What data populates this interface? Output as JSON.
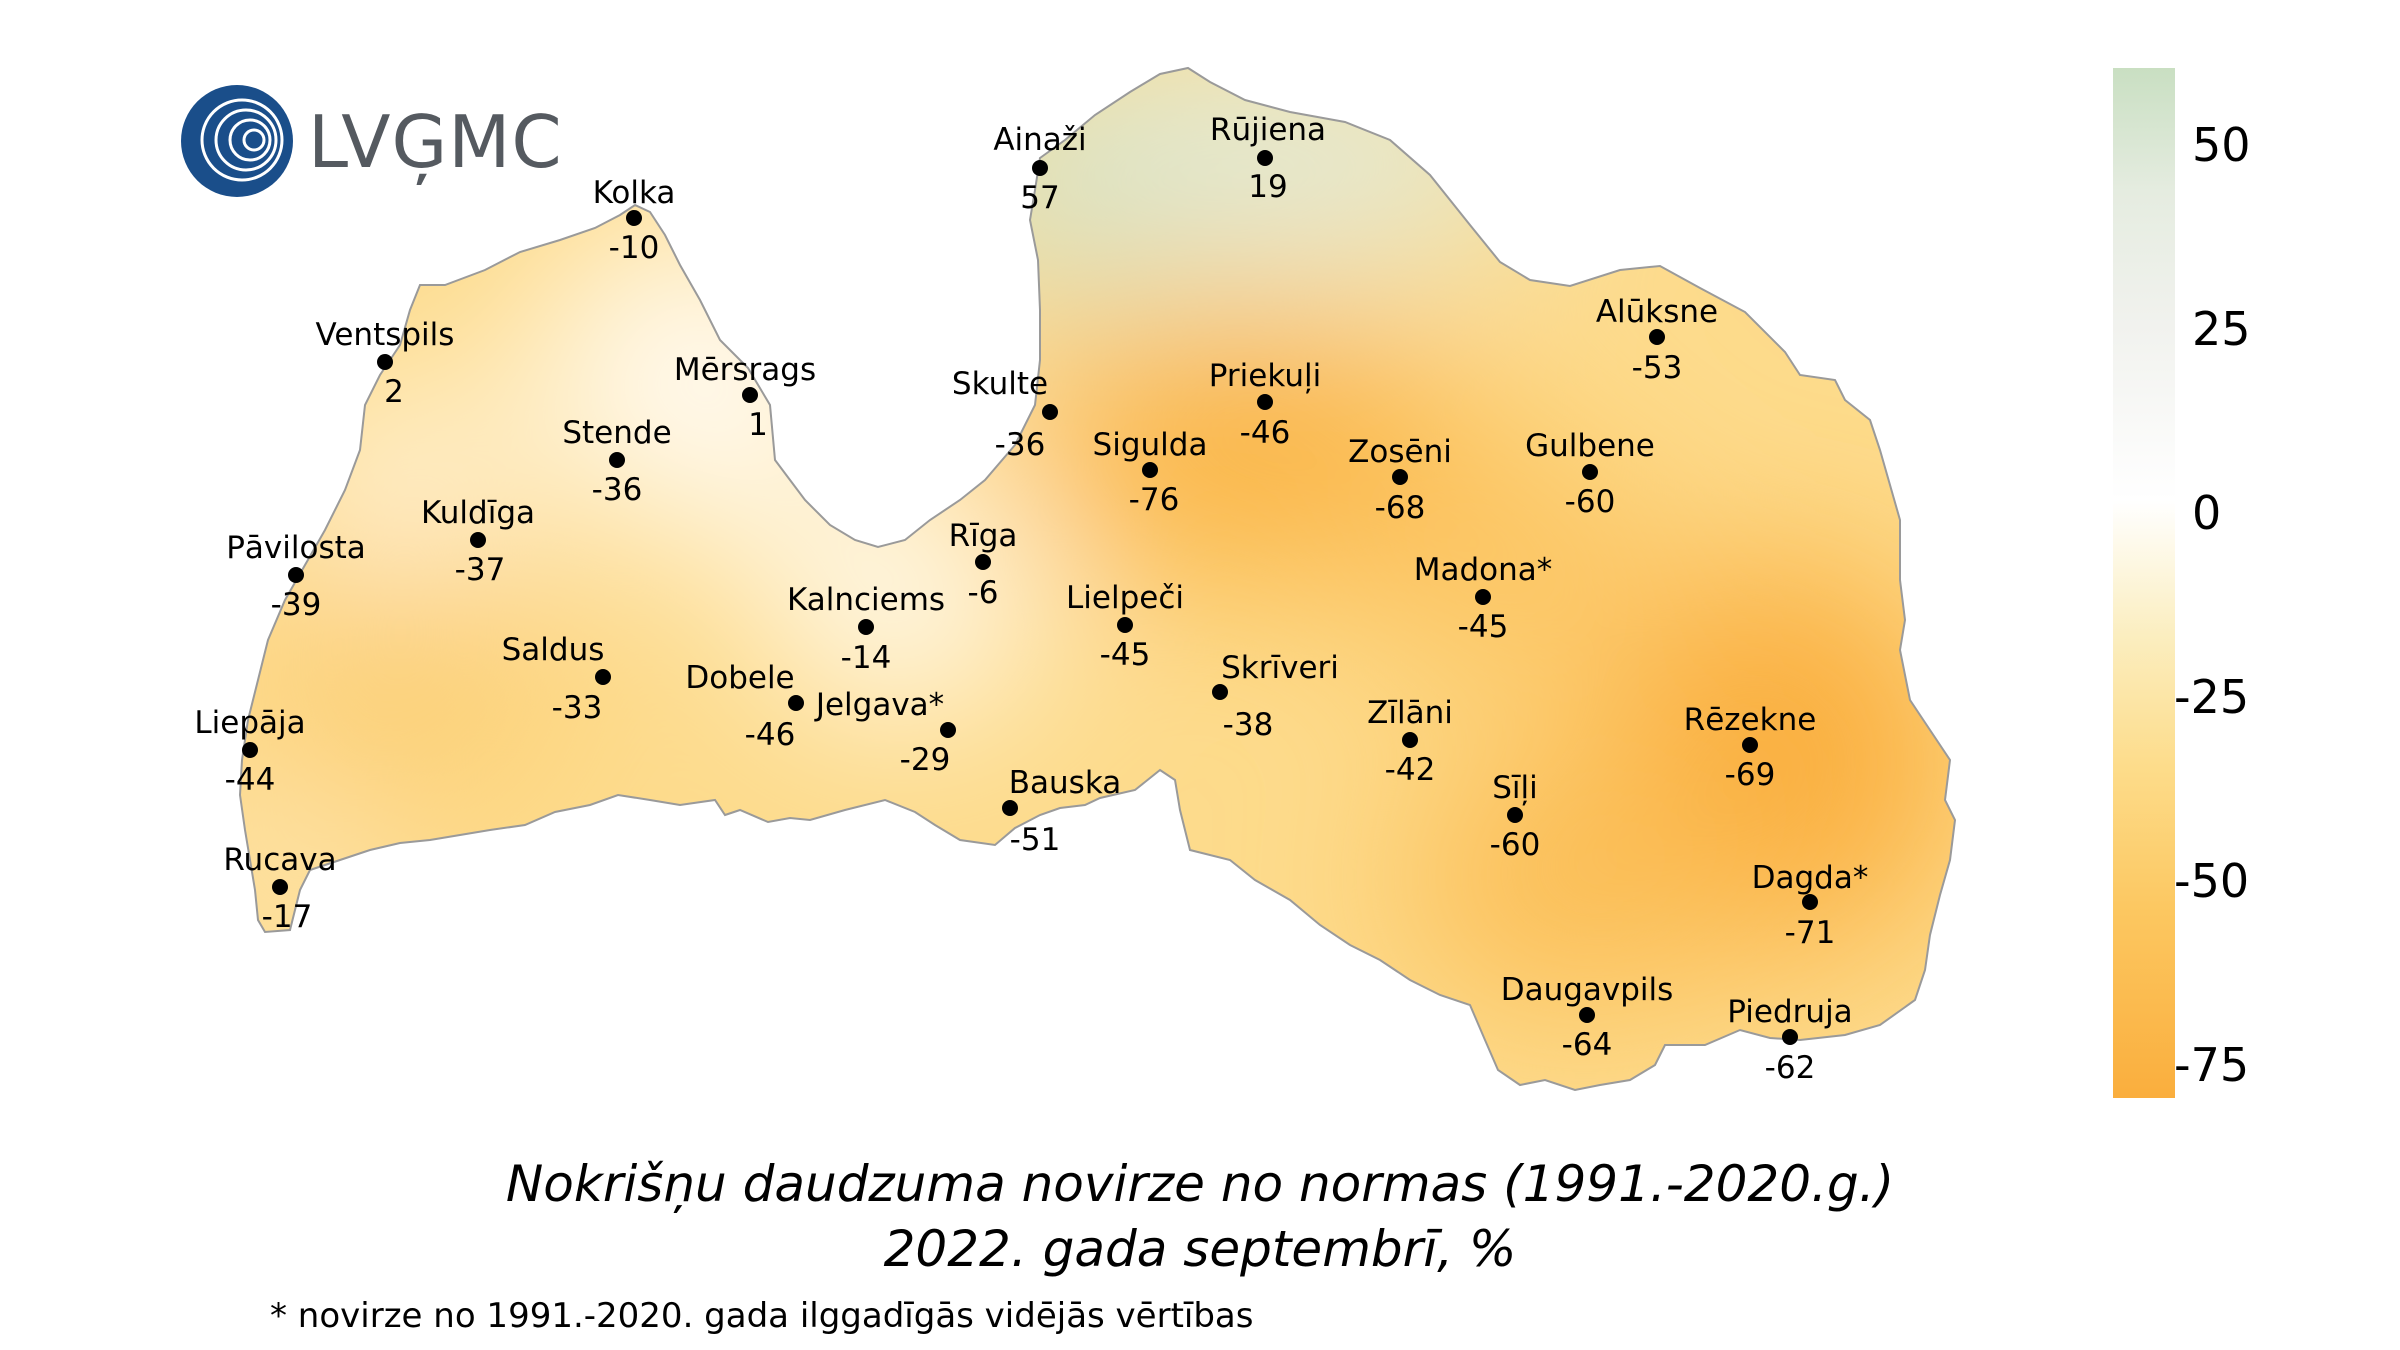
{
  "logo": {
    "text": "LVĢMC"
  },
  "title": {
    "line1": "Nokrišņu daudzuma novirze no normas (1991.-2020.g.)",
    "line2": "2022. gada septembrī, %"
  },
  "footnote": "* novirze no 1991.-2020. gada ilggadīgās vidējās vērtības",
  "legend": {
    "ticks": [
      "50",
      "25",
      "0",
      "-25",
      "-50",
      "-75"
    ]
  },
  "colors": {
    "high": "#c9dfc2",
    "zero": "#ffffff",
    "low": "#faae3d",
    "border": "#9a9a9a"
  },
  "stations": [
    {
      "name": "Ainaži",
      "value": "57"
    },
    {
      "name": "Rūjiena",
      "value": "19"
    },
    {
      "name": "Kolka",
      "value": "-10"
    },
    {
      "name": "Ventspils",
      "value": "2"
    },
    {
      "name": "Mērsrags",
      "value": "1"
    },
    {
      "name": "Skulte",
      "value": "-36"
    },
    {
      "name": "Priekuļi",
      "value": "-46"
    },
    {
      "name": "Alūksne",
      "value": "-53"
    },
    {
      "name": "Stende",
      "value": "-36"
    },
    {
      "name": "Sigulda",
      "value": "-76"
    },
    {
      "name": "Zosēni",
      "value": "-68"
    },
    {
      "name": "Gulbene",
      "value": "-60"
    },
    {
      "name": "Kuldīga",
      "value": "-37"
    },
    {
      "name": "Pāvilosta",
      "value": "-39"
    },
    {
      "name": "Rīga",
      "value": "-6"
    },
    {
      "name": "Madona*",
      "value": "-45"
    },
    {
      "name": "Kalnciems",
      "value": "-14"
    },
    {
      "name": "Lielpeči",
      "value": "-45"
    },
    {
      "name": "Saldus",
      "value": "-33"
    },
    {
      "name": "Skrīveri",
      "value": "-38"
    },
    {
      "name": "Dobele",
      "value": "-46"
    },
    {
      "name": "Jelgava*",
      "value": "-29"
    },
    {
      "name": "Zīlāni",
      "value": "-42"
    },
    {
      "name": "Rēzekne",
      "value": "-69"
    },
    {
      "name": "Liepāja",
      "value": "-44"
    },
    {
      "name": "Sīļi",
      "value": "-60"
    },
    {
      "name": "Bauska",
      "value": "-51"
    },
    {
      "name": "Rucava",
      "value": "-17"
    },
    {
      "name": "Dagda*",
      "value": "-71"
    },
    {
      "name": "Daugavpils",
      "value": "-64"
    },
    {
      "name": "Piedruja",
      "value": "-62"
    }
  ]
}
